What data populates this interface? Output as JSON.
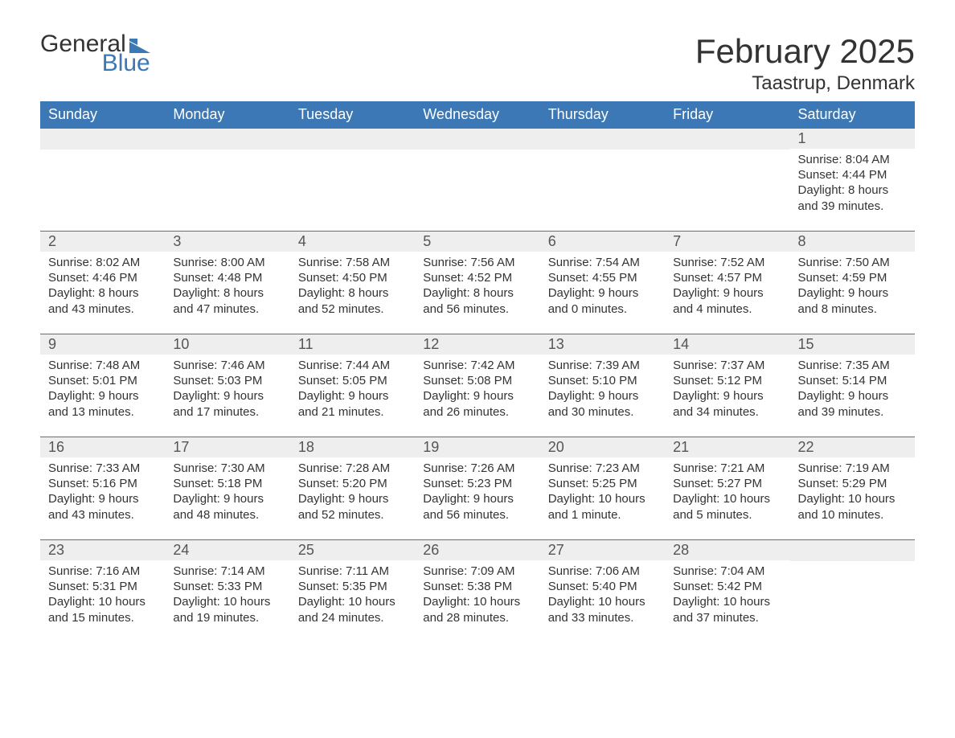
{
  "colors": {
    "brand_blue": "#3b78b5",
    "header_row_bg": "#3b78b5",
    "week_border": "#3b78b5",
    "day_band_bg": "#eeeeee",
    "text_primary": "#333333",
    "text_daynum": "#555555",
    "background": "#ffffff"
  },
  "typography": {
    "title_fontsize": 42,
    "location_fontsize": 24,
    "weekday_fontsize": 18,
    "daynum_fontsize": 18,
    "body_fontsize": 15,
    "logo_fontsize": 30
  },
  "logo": {
    "text1": "General",
    "text2": "Blue"
  },
  "title": "February 2025",
  "location": "Taastrup, Denmark",
  "weekdays": [
    "Sunday",
    "Monday",
    "Tuesday",
    "Wednesday",
    "Thursday",
    "Friday",
    "Saturday"
  ],
  "weeks": [
    [
      null,
      null,
      null,
      null,
      null,
      null,
      {
        "n": "1",
        "sunrise": "8:04 AM",
        "sunset": "4:44 PM",
        "daylight": "8 hours and 39 minutes."
      }
    ],
    [
      {
        "n": "2",
        "sunrise": "8:02 AM",
        "sunset": "4:46 PM",
        "daylight": "8 hours and 43 minutes."
      },
      {
        "n": "3",
        "sunrise": "8:00 AM",
        "sunset": "4:48 PM",
        "daylight": "8 hours and 47 minutes."
      },
      {
        "n": "4",
        "sunrise": "7:58 AM",
        "sunset": "4:50 PM",
        "daylight": "8 hours and 52 minutes."
      },
      {
        "n": "5",
        "sunrise": "7:56 AM",
        "sunset": "4:52 PM",
        "daylight": "8 hours and 56 minutes."
      },
      {
        "n": "6",
        "sunrise": "7:54 AM",
        "sunset": "4:55 PM",
        "daylight": "9 hours and 0 minutes."
      },
      {
        "n": "7",
        "sunrise": "7:52 AM",
        "sunset": "4:57 PM",
        "daylight": "9 hours and 4 minutes."
      },
      {
        "n": "8",
        "sunrise": "7:50 AM",
        "sunset": "4:59 PM",
        "daylight": "9 hours and 8 minutes."
      }
    ],
    [
      {
        "n": "9",
        "sunrise": "7:48 AM",
        "sunset": "5:01 PM",
        "daylight": "9 hours and 13 minutes."
      },
      {
        "n": "10",
        "sunrise": "7:46 AM",
        "sunset": "5:03 PM",
        "daylight": "9 hours and 17 minutes."
      },
      {
        "n": "11",
        "sunrise": "7:44 AM",
        "sunset": "5:05 PM",
        "daylight": "9 hours and 21 minutes."
      },
      {
        "n": "12",
        "sunrise": "7:42 AM",
        "sunset": "5:08 PM",
        "daylight": "9 hours and 26 minutes."
      },
      {
        "n": "13",
        "sunrise": "7:39 AM",
        "sunset": "5:10 PM",
        "daylight": "9 hours and 30 minutes."
      },
      {
        "n": "14",
        "sunrise": "7:37 AM",
        "sunset": "5:12 PM",
        "daylight": "9 hours and 34 minutes."
      },
      {
        "n": "15",
        "sunrise": "7:35 AM",
        "sunset": "5:14 PM",
        "daylight": "9 hours and 39 minutes."
      }
    ],
    [
      {
        "n": "16",
        "sunrise": "7:33 AM",
        "sunset": "5:16 PM",
        "daylight": "9 hours and 43 minutes."
      },
      {
        "n": "17",
        "sunrise": "7:30 AM",
        "sunset": "5:18 PM",
        "daylight": "9 hours and 48 minutes."
      },
      {
        "n": "18",
        "sunrise": "7:28 AM",
        "sunset": "5:20 PM",
        "daylight": "9 hours and 52 minutes."
      },
      {
        "n": "19",
        "sunrise": "7:26 AM",
        "sunset": "5:23 PM",
        "daylight": "9 hours and 56 minutes."
      },
      {
        "n": "20",
        "sunrise": "7:23 AM",
        "sunset": "5:25 PM",
        "daylight": "10 hours and 1 minute."
      },
      {
        "n": "21",
        "sunrise": "7:21 AM",
        "sunset": "5:27 PM",
        "daylight": "10 hours and 5 minutes."
      },
      {
        "n": "22",
        "sunrise": "7:19 AM",
        "sunset": "5:29 PM",
        "daylight": "10 hours and 10 minutes."
      }
    ],
    [
      {
        "n": "23",
        "sunrise": "7:16 AM",
        "sunset": "5:31 PM",
        "daylight": "10 hours and 15 minutes."
      },
      {
        "n": "24",
        "sunrise": "7:14 AM",
        "sunset": "5:33 PM",
        "daylight": "10 hours and 19 minutes."
      },
      {
        "n": "25",
        "sunrise": "7:11 AM",
        "sunset": "5:35 PM",
        "daylight": "10 hours and 24 minutes."
      },
      {
        "n": "26",
        "sunrise": "7:09 AM",
        "sunset": "5:38 PM",
        "daylight": "10 hours and 28 minutes."
      },
      {
        "n": "27",
        "sunrise": "7:06 AM",
        "sunset": "5:40 PM",
        "daylight": "10 hours and 33 minutes."
      },
      {
        "n": "28",
        "sunrise": "7:04 AM",
        "sunset": "5:42 PM",
        "daylight": "10 hours and 37 minutes."
      },
      null
    ]
  ],
  "labels": {
    "sunrise": "Sunrise: ",
    "sunset": "Sunset: ",
    "daylight": "Daylight: "
  }
}
